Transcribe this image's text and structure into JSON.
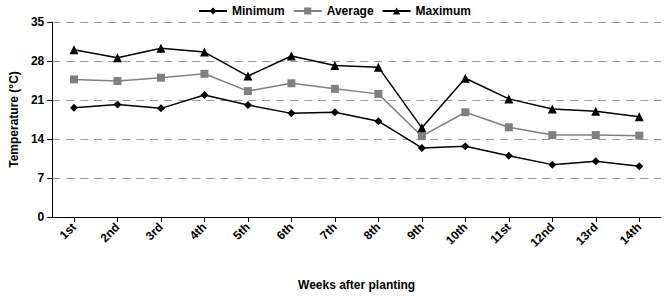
{
  "chart_data": {
    "type": "line",
    "x_label": "Weeks after planting",
    "y_label": "Temperature (°C)",
    "categories": [
      "1st",
      "2nd",
      "3rd",
      "4th",
      "5th",
      "6th",
      "7th",
      "8th",
      "9th",
      "10th",
      "11st",
      "12nd",
      "13rd",
      "14th"
    ],
    "series": [
      {
        "name": "Minimum",
        "color": "#000000",
        "marker": "diamond",
        "values": [
          19.6,
          20.2,
          19.5,
          21.9,
          20.1,
          18.6,
          18.8,
          17.2,
          12.4,
          12.7,
          11.0,
          9.4,
          10.0,
          9.1
        ]
      },
      {
        "name": "Average",
        "color": "#808080",
        "marker": "square",
        "values": [
          24.7,
          24.4,
          25.0,
          25.7,
          22.6,
          24.0,
          23.0,
          22.1,
          14.5,
          18.8,
          16.1,
          14.7,
          14.7,
          14.6
        ]
      },
      {
        "name": "Maximum",
        "color": "#000000",
        "marker": "triangle",
        "values": [
          30.0,
          28.6,
          30.3,
          29.6,
          25.3,
          28.9,
          27.2,
          26.9,
          16.0,
          24.9,
          21.2,
          19.4,
          19.0,
          18.0
        ]
      }
    ],
    "ylim": [
      0,
      35
    ],
    "yticks": [
      0,
      7,
      14,
      21,
      28,
      35
    ],
    "grid": true,
    "legend": "top"
  }
}
